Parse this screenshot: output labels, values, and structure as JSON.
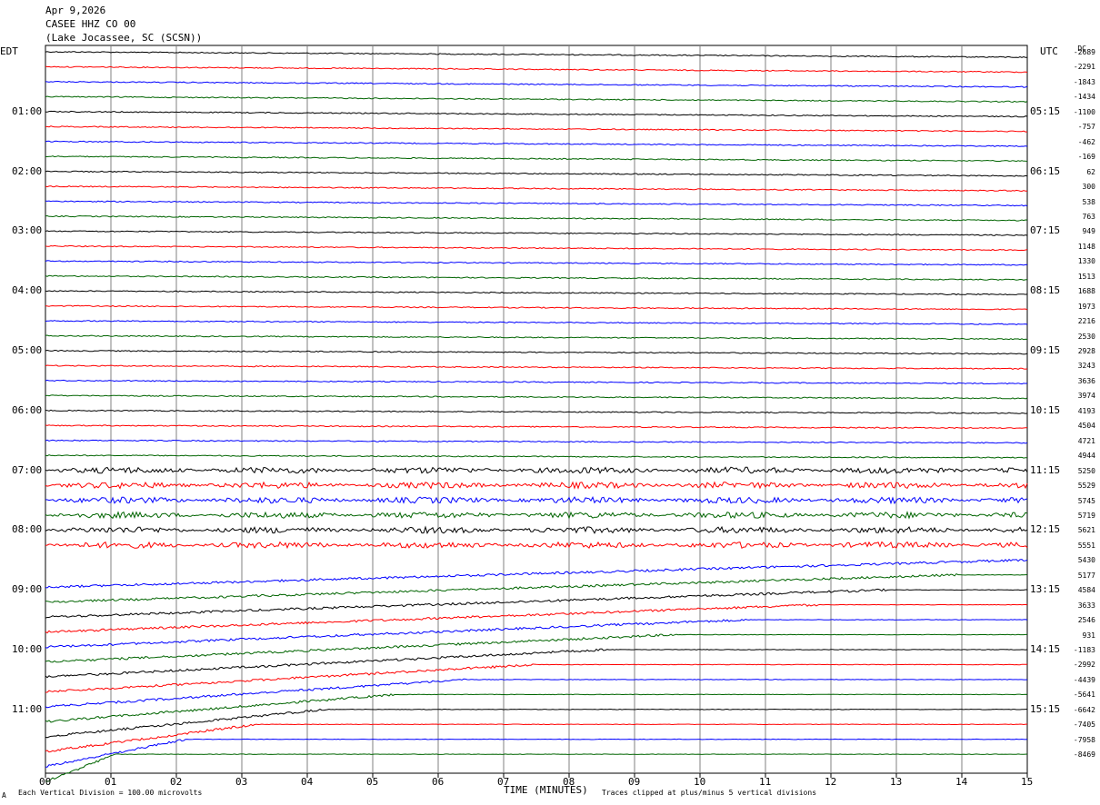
{
  "header": {
    "date": "Apr 9,2026",
    "station": "CASEE HHZ CO 00",
    "location": "(Lake Jocassee, SC (SCSN))"
  },
  "left_label": "EDT",
  "right_label": "UTC",
  "dc_label": "DC",
  "footer": {
    "scale_note": "Each Vertical Division =  100.00 microvolts",
    "clip_note": "Traces clipped at plus/minus 5 vertical divisions",
    "corner_mark": "A"
  },
  "colors": {
    "black": "#000000",
    "red": "#ff0000",
    "blue": "#0000ff",
    "green": "#006400",
    "grid": "#808080"
  },
  "chart_data": {
    "type": "line",
    "title": "CASEE HHZ CO 00",
    "xlabel": "TIME (MINUTES)",
    "ylabel": "",
    "x_ticks": [
      "00",
      "01",
      "02",
      "03",
      "04",
      "05",
      "06",
      "07",
      "08",
      "09",
      "10",
      "11",
      "12",
      "13",
      "14",
      "15"
    ],
    "xlim": [
      0,
      15
    ],
    "edt_labels": [
      "01:00",
      "02:00",
      "03:00",
      "04:00",
      "05:00",
      "06:00",
      "07:00",
      "08:00",
      "09:00",
      "10:00",
      "11:00"
    ],
    "utc_labels": [
      "05:15",
      "06:15",
      "07:15",
      "08:15",
      "09:15",
      "10:15",
      "11:15",
      "12:15",
      "13:15",
      "14:15",
      "15:15"
    ],
    "dc_values": [
      "-2689",
      "-2291",
      "-1843",
      "-1434",
      "-1100",
      "-757",
      "-462",
      "-169",
      "62",
      "300",
      "538",
      "763",
      "949",
      "1148",
      "1330",
      "1513",
      "1688",
      "1973",
      "2216",
      "2530",
      "2928",
      "3243",
      "3636",
      "3974",
      "4193",
      "4504",
      "4721",
      "4944",
      "5250",
      "5529",
      "5745",
      "5719",
      "5621",
      "5551",
      "5430",
      "5177",
      "4584",
      "3633",
      "2546",
      "931",
      "-1183",
      "-2992",
      "-4439",
      "-5641",
      "-6642",
      "-7405",
      "-7958",
      "-8469"
    ],
    "trace_colors": [
      "black",
      "red",
      "blue",
      "green"
    ],
    "traces_per_hour": 4,
    "minutes_per_trace": 15,
    "grid": true
  }
}
